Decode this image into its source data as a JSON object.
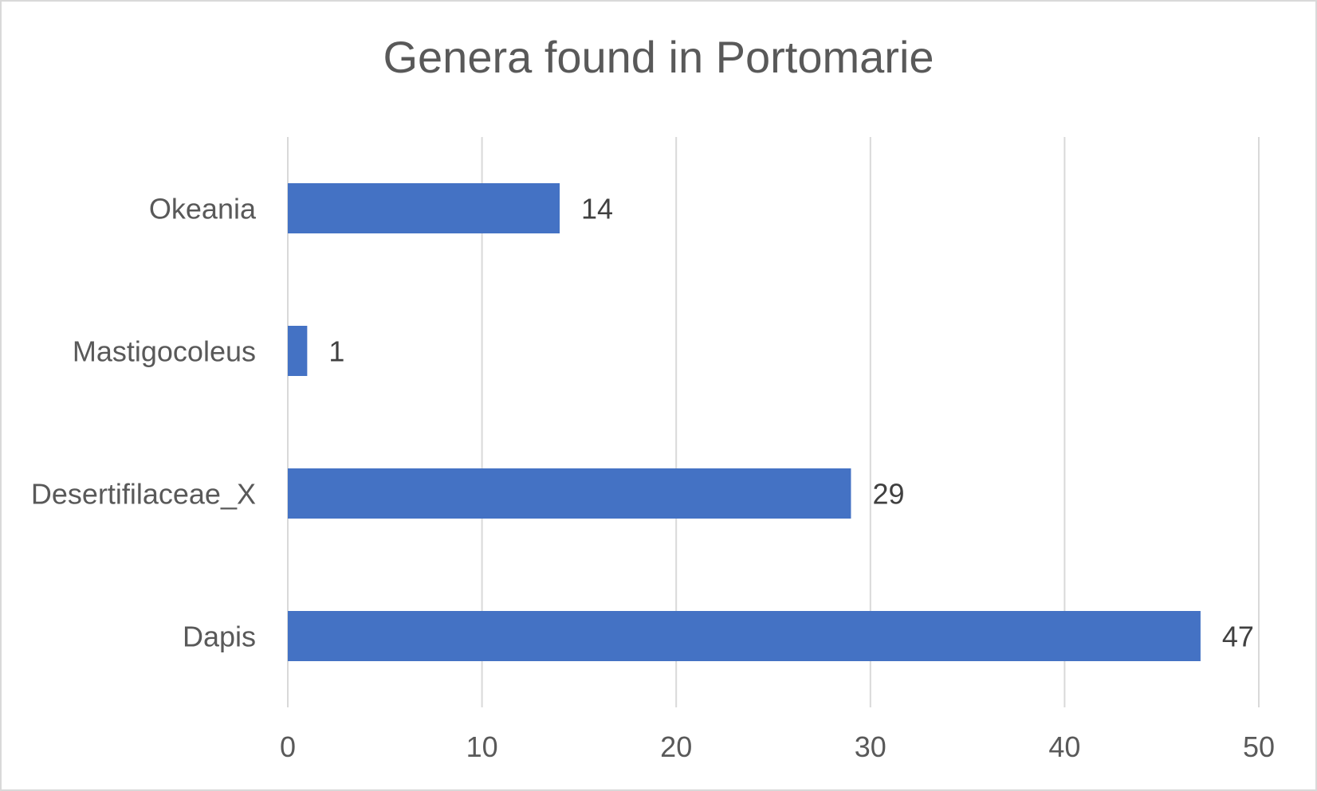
{
  "chart_data": {
    "type": "bar",
    "orientation": "horizontal",
    "title": "Genera found in Portomarie",
    "categories": [
      "Okeania",
      "Mastigocoleus",
      "Desertifilaceae_X",
      "Dapis"
    ],
    "values": [
      14,
      1,
      29,
      47
    ],
    "data_labels": [
      "14",
      "1",
      "29",
      "47"
    ],
    "xlim": [
      0,
      50
    ],
    "x_ticks": [
      0,
      10,
      20,
      30,
      40,
      50
    ],
    "xlabel": "",
    "ylabel": "",
    "grid": true,
    "legend": "none",
    "bar_color": "#4472c4",
    "grid_color": "#d9d9d9",
    "text_color": "#595959",
    "label_color": "#404040"
  }
}
